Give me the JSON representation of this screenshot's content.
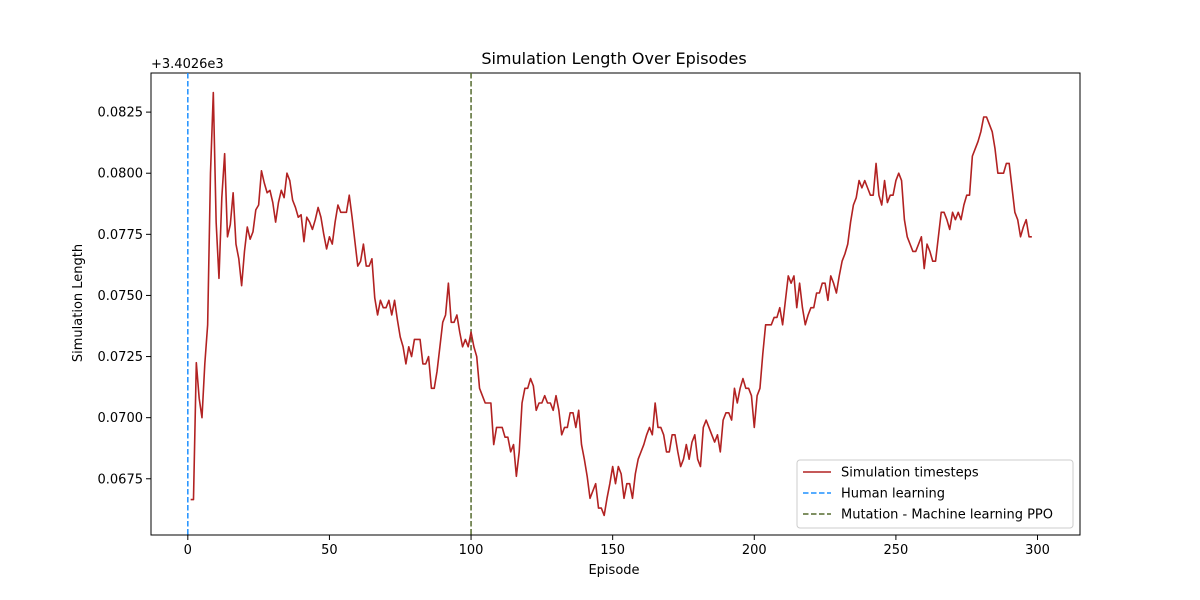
{
  "chart_data": {
    "type": "line",
    "title": "Simulation Length Over Episodes",
    "xlabel": "Episode",
    "ylabel": "Simulation Length",
    "offset_label": "+3.4026e3",
    "xlim": [
      -13,
      315
    ],
    "ylim": [
      0.0652,
      0.0841
    ],
    "xticks": [
      0,
      50,
      100,
      150,
      200,
      250,
      300
    ],
    "yticks": [
      0.0675,
      0.07,
      0.0725,
      0.075,
      0.0775,
      0.08,
      0.0825
    ],
    "ytick_labels": [
      "0.0675",
      "0.0700",
      "0.0725",
      "0.0750",
      "0.0775",
      "0.0800",
      "0.0825"
    ],
    "grid": false,
    "legend_position": "lower-right",
    "series": [
      {
        "name": "Simulation timesteps",
        "color": "#b22222",
        "style": "solid",
        "x_start": 1,
        "y": [
          0.06665,
          0.06665,
          0.07225,
          0.0708,
          0.07,
          0.0722,
          0.0738,
          0.08,
          0.0833,
          0.078,
          0.0757,
          0.079,
          0.0808,
          0.0774,
          0.0779,
          0.0792,
          0.0771,
          0.0765,
          0.0754,
          0.0768,
          0.0778,
          0.0773,
          0.0776,
          0.0785,
          0.0787,
          0.0801,
          0.0796,
          0.0792,
          0.0793,
          0.0788,
          0.078,
          0.0788,
          0.0793,
          0.079,
          0.08,
          0.0797,
          0.0789,
          0.0786,
          0.0782,
          0.0783,
          0.0772,
          0.0782,
          0.078,
          0.0777,
          0.0781,
          0.0786,
          0.0782,
          0.0775,
          0.0769,
          0.0774,
          0.0771,
          0.078,
          0.0787,
          0.0784,
          0.0784,
          0.0784,
          0.0791,
          0.0782,
          0.0772,
          0.0762,
          0.0764,
          0.0771,
          0.0762,
          0.0762,
          0.0765,
          0.0749,
          0.0742,
          0.0748,
          0.0745,
          0.0745,
          0.0748,
          0.0742,
          0.0748,
          0.074,
          0.0733,
          0.0729,
          0.0722,
          0.0729,
          0.0725,
          0.0732,
          0.0732,
          0.0732,
          0.0722,
          0.0722,
          0.0725,
          0.0712,
          0.0712,
          0.0719,
          0.0729,
          0.0739,
          0.0742,
          0.0755,
          0.0739,
          0.0739,
          0.0742,
          0.0735,
          0.0729,
          0.0732,
          0.0729,
          0.0735,
          0.0729,
          0.0725,
          0.0712,
          0.0709,
          0.0706,
          0.0706,
          0.0706,
          0.0689,
          0.0696,
          0.0696,
          0.0696,
          0.0692,
          0.0692,
          0.0686,
          0.0689,
          0.0676,
          0.0686,
          0.0706,
          0.0712,
          0.0712,
          0.0716,
          0.0713,
          0.0703,
          0.0706,
          0.0706,
          0.0709,
          0.0706,
          0.0706,
          0.0703,
          0.0709,
          0.0703,
          0.0693,
          0.0696,
          0.0696,
          0.0702,
          0.0702,
          0.0696,
          0.0703,
          0.0689,
          0.0683,
          0.0676,
          0.0667,
          0.067,
          0.0673,
          0.0663,
          0.0663,
          0.066,
          0.0667,
          0.0673,
          0.068,
          0.0673,
          0.068,
          0.0677,
          0.0667,
          0.0673,
          0.0673,
          0.0667,
          0.0677,
          0.0683,
          0.0686,
          0.0689,
          0.0693,
          0.0696,
          0.0693,
          0.0706,
          0.0696,
          0.0696,
          0.0693,
          0.0686,
          0.0686,
          0.0693,
          0.0693,
          0.0686,
          0.068,
          0.0683,
          0.0689,
          0.0683,
          0.069,
          0.0693,
          0.0683,
          0.068,
          0.0696,
          0.0699,
          0.0696,
          0.0693,
          0.069,
          0.0693,
          0.0686,
          0.0699,
          0.0702,
          0.0702,
          0.0699,
          0.0712,
          0.0706,
          0.0712,
          0.0716,
          0.0712,
          0.0712,
          0.0709,
          0.0696,
          0.0709,
          0.0712,
          0.0726,
          0.0738,
          0.0738,
          0.0738,
          0.0741,
          0.0741,
          0.0745,
          0.0738,
          0.0748,
          0.0758,
          0.0755,
          0.0758,
          0.0745,
          0.0755,
          0.0745,
          0.0738,
          0.0742,
          0.0745,
          0.0745,
          0.0751,
          0.0751,
          0.0755,
          0.0755,
          0.0748,
          0.0758,
          0.0755,
          0.0751,
          0.0758,
          0.0764,
          0.0767,
          0.0771,
          0.078,
          0.0787,
          0.079,
          0.0797,
          0.0794,
          0.0797,
          0.0794,
          0.0791,
          0.0791,
          0.0804,
          0.0791,
          0.0787,
          0.0797,
          0.0788,
          0.0791,
          0.0791,
          0.0797,
          0.08,
          0.0797,
          0.0781,
          0.0774,
          0.0771,
          0.0768,
          0.0768,
          0.0771,
          0.0774,
          0.0761,
          0.0771,
          0.0768,
          0.0764,
          0.0764,
          0.0774,
          0.0784,
          0.0784,
          0.0781,
          0.0777,
          0.0784,
          0.0781,
          0.0784,
          0.0781,
          0.0787,
          0.0791,
          0.0791,
          0.0807,
          0.081,
          0.0813,
          0.0817,
          0.0823,
          0.0823,
          0.082,
          0.0817,
          0.081,
          0.08,
          0.08,
          0.08,
          0.0804,
          0.0804,
          0.0794,
          0.0784,
          0.0781,
          0.0774,
          0.0778,
          0.0781,
          0.0774,
          0.0774
        ]
      },
      {
        "name": "Human learning",
        "color": "#1e90ff",
        "style": "dashed",
        "x": 0
      },
      {
        "name": "Mutation - Machine learning PPO",
        "color": "#556b2f",
        "style": "dashed",
        "x": 100
      }
    ]
  }
}
